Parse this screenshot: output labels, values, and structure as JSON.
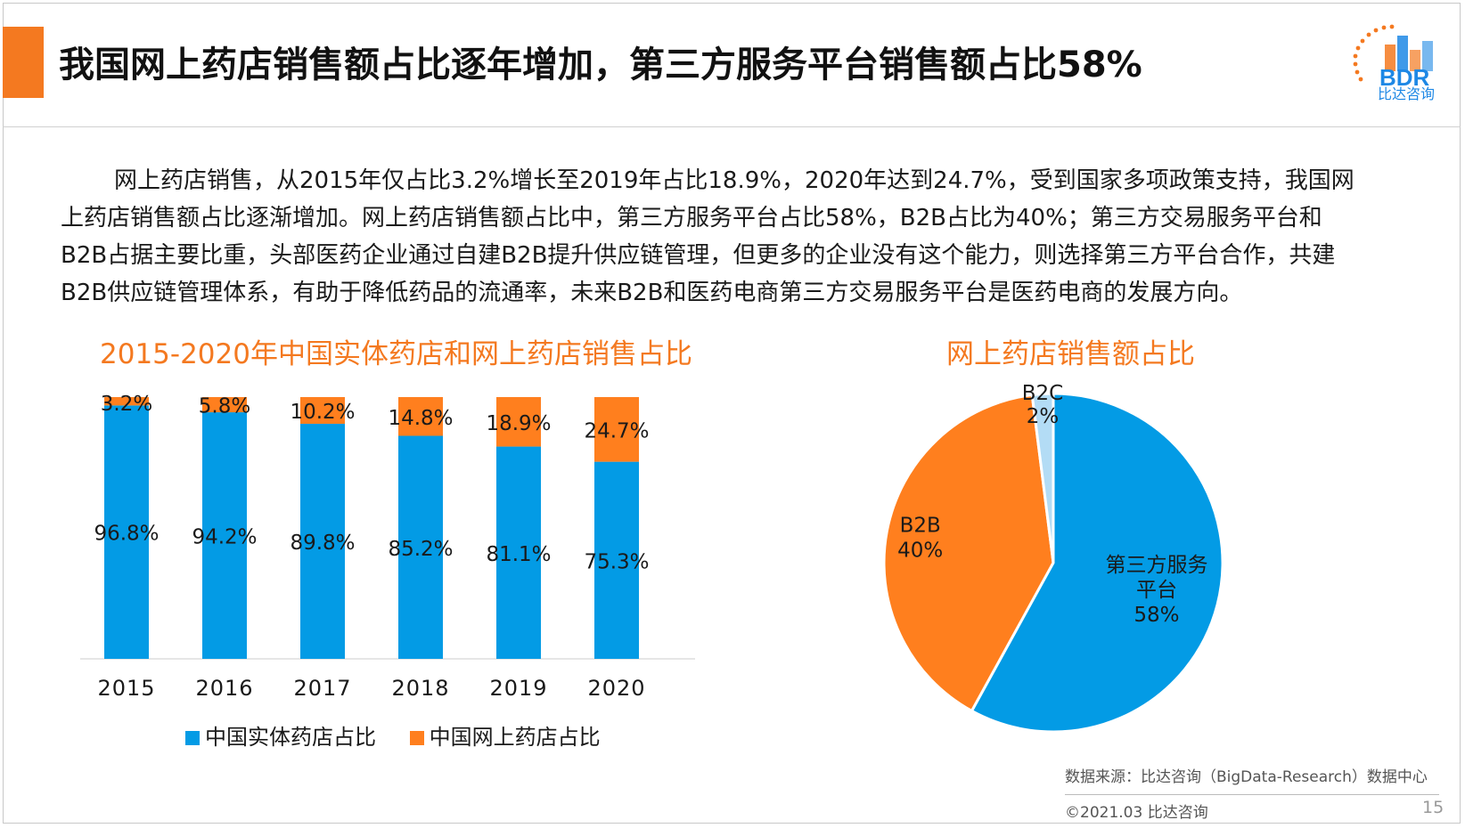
{
  "title": "我国网上药店销售额占比逐年增加，第三方服务平台销售额占比58%",
  "logo": {
    "brand": "BDR",
    "caption": "比达咨询"
  },
  "intro": [
    "网上药店销售，从2015年仅占比3.2%增长至2019年占比18.9%，2020年达到24.7%，受到国家多项政策支持，我国网",
    "上药店销售额占比逐渐增加。网上药店销售额占比中，第三方服务平台占比58%，B2B占比为40%；第三方交易服务平台和",
    "B2B占据主要比重，头部医药企业通过自建B2B提升供应链管理，但更多的企业没有这个能力，则选择第三方平台合作，共建",
    "B2B供应链管理体系，有助于降低药品的流通率，未来B2B和医药电商第三方交易服务平台是医药电商的发展方向。"
  ],
  "colors": {
    "accent": "#f47920",
    "blue": "#039be5",
    "orange": "#ff7f1e",
    "light_blue": "#b3dcf5"
  },
  "chart_data": [
    {
      "type": "bar",
      "stacked": true,
      "title": "2015-2020年中国实体药店和网上药店销售占比",
      "categories": [
        "2015",
        "2016",
        "2017",
        "2018",
        "2019",
        "2020"
      ],
      "series": [
        {
          "name": "中国实体药店占比",
          "values": [
            96.8,
            94.2,
            89.8,
            85.2,
            81.1,
            75.3
          ],
          "labels": [
            "96.8%",
            "94.2%",
            "89.8%",
            "85.2%",
            "81.1%",
            "75.3%"
          ],
          "color": "#039be5"
        },
        {
          "name": "中国网上药店占比",
          "values": [
            3.2,
            5.8,
            10.2,
            14.8,
            18.9,
            24.7
          ],
          "labels": [
            "3.2%",
            "5.8%",
            "10.2%",
            "14.8%",
            "18.9%",
            "24.7%"
          ],
          "color": "#ff7f1e"
        }
      ],
      "ylim": [
        0,
        100
      ],
      "grid": false,
      "legend": "bottom"
    },
    {
      "type": "pie",
      "title": "网上药店销售额占比",
      "slices": [
        {
          "name": "第三方服务平台",
          "value": 58,
          "label_lines": [
            "第三方服务",
            "平台",
            "58%"
          ],
          "color": "#039be5"
        },
        {
          "name": "B2B",
          "value": 40,
          "label_lines": [
            "B2B",
            "40%"
          ],
          "color": "#ff7f1e"
        },
        {
          "name": "B2C",
          "value": 2,
          "label_lines": [
            "B2C",
            "2%"
          ],
          "color": "#b3dcf5"
        }
      ]
    }
  ],
  "footer": {
    "source": "数据来源：比达咨询（BigData-Research）数据中心",
    "copyright": "©2021.03 比达咨询",
    "page": "15"
  }
}
